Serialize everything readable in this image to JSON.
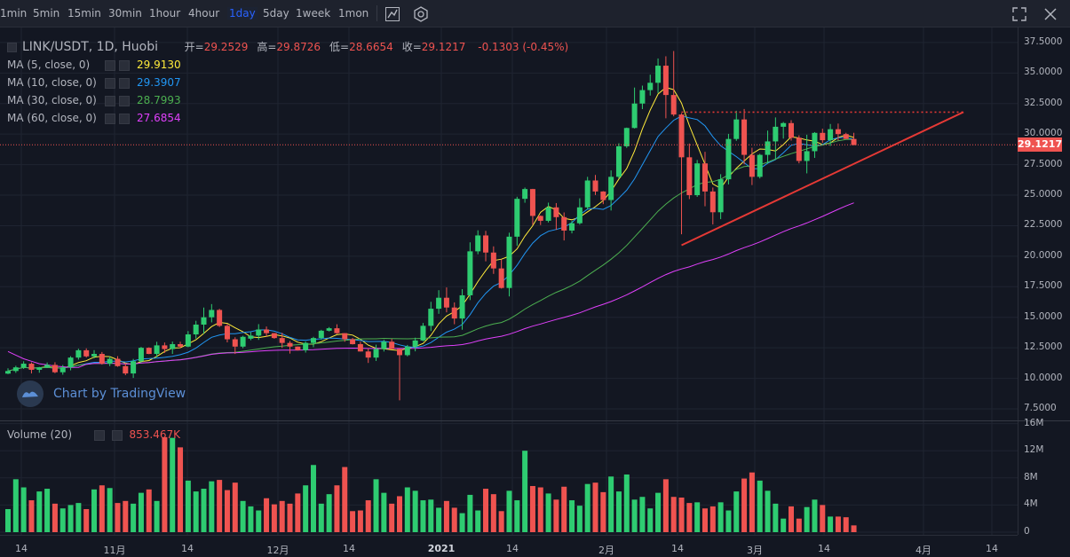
{
  "toolbar": {
    "timeframes": [
      "1min",
      "5min",
      "15min",
      "30min",
      "1hour",
      "4hour",
      "1day",
      "5day",
      "1week",
      "1mon"
    ],
    "active": "1day"
  },
  "legend": {
    "symbol": "LINK/USDT, 1D, Huobi",
    "ohlc": [
      {
        "k": "开=",
        "v": "29.2529"
      },
      {
        "k": "高=",
        "v": "29.8726"
      },
      {
        "k": "低=",
        "v": "28.6654"
      },
      {
        "k": "收=",
        "v": "29.1217"
      }
    ],
    "change": "-0.1303 (-0.45%)",
    "indicators": [
      {
        "name": "MA (5, close, 0)",
        "value": "29.9130",
        "color": "#ffeb3b"
      },
      {
        "name": "MA (10, close, 0)",
        "value": "29.3907",
        "color": "#2196f3"
      },
      {
        "name": "MA (30, close, 0)",
        "value": "28.7993",
        "color": "#4caf50"
      },
      {
        "name": "MA (60, close, 0)",
        "value": "27.6854",
        "color": "#e040fb"
      }
    ]
  },
  "volume_legend": {
    "name": "Volume (20)",
    "value": "853.467K"
  },
  "last_price": "29.1217",
  "watermark": "Chart by TradingView",
  "colors": {
    "up": "#26a69a",
    "up_bright": "#2ecc71",
    "down": "#ef5350",
    "trendline": "#e53935",
    "bg": "#131722"
  },
  "chart_data": {
    "type": "candlestick",
    "title": "LINK/USDT, 1D, Huobi",
    "price_axis": {
      "ticks": [
        "7.5000",
        "10.0000",
        "12.5000",
        "15.0000",
        "17.5000",
        "20.0000",
        "22.5000",
        "25.0000",
        "27.5000",
        "30.0000",
        "32.5000",
        "35.0000",
        "37.5000"
      ],
      "ylim": [
        7.5,
        37.5
      ]
    },
    "volume_axis": {
      "ticks": [
        "0",
        "4M",
        "8M",
        "12M",
        "16M"
      ],
      "ylim": [
        0,
        16
      ]
    },
    "time_axis": [
      "14",
      "11月",
      "14",
      "12月",
      "14",
      "2021",
      "14",
      "2月",
      "14",
      "3月",
      "14",
      "4月",
      "14"
    ],
    "price_path": [
      10.6,
      10.9,
      11.2,
      10.7,
      10.9,
      11.1,
      10.5,
      10.9,
      11.7,
      12.3,
      11.8,
      12.0,
      11.2,
      11.6,
      11.0,
      10.4,
      11.4,
      12.5,
      12.0,
      12.7,
      12.4,
      12.8,
      12.6,
      13.6,
      14.4,
      15.0,
      15.6,
      14.3,
      13.2,
      12.6,
      13.4,
      13.5,
      14.0,
      13.7,
      13.3,
      12.9,
      12.6,
      12.3,
      12.9,
      13.3,
      13.9,
      14.1,
      13.7,
      13.2,
      12.8,
      12.2,
      11.7,
      12.4,
      13.0,
      12.4,
      11.9,
      12.6,
      13.1,
      14.3,
      15.7,
      16.6,
      15.8,
      14.9,
      16.8,
      20.4,
      21.7,
      20.3,
      19.0,
      17.4,
      21.6,
      24.7,
      25.5,
      23.3,
      22.9,
      24.0,
      23.2,
      22.1,
      22.7,
      24.0,
      26.2,
      25.3,
      24.6,
      26.5,
      29.0,
      30.5,
      32.5,
      33.6,
      34.2,
      35.6,
      33.2,
      31.6,
      28.1,
      25.0,
      27.6,
      25.3,
      23.6,
      26.3,
      29.6,
      31.2,
      28.3,
      26.5,
      28.3,
      29.4,
      30.6,
      30.9,
      29.7,
      27.8,
      28.6,
      30.1,
      29.5,
      30.4,
      30.0,
      29.6,
      29.1
    ],
    "volume_path": [
      3.4,
      7.8,
      6.6,
      4.7,
      6.0,
      6.4,
      4.2,
      3.5,
      4.0,
      4.3,
      3.4,
      6.3,
      6.9,
      6.5,
      4.3,
      4.6,
      4.2,
      5.8,
      6.3,
      4.6,
      14.0,
      13.9,
      12.5,
      7.6,
      6.0,
      6.4,
      7.5,
      7.7,
      6.2,
      7.3,
      4.6,
      3.8,
      3.2,
      5.0,
      4.1,
      4.6,
      4.2,
      5.7,
      6.9,
      9.9,
      4.2,
      5.6,
      6.9,
      9.6,
      3.1,
      3.2,
      4.7,
      7.8,
      5.8,
      4.2,
      5.3,
      6.6,
      6.1,
      4.7,
      4.8,
      3.6,
      4.6,
      3.6,
      2.8,
      5.5,
      3.2,
      6.4,
      5.6,
      3.1,
      6.1,
      4.7,
      12.0,
      6.8,
      6.6,
      5.7,
      4.8,
      6.7,
      4.7,
      3.9,
      7.1,
      7.3,
      5.9,
      8.2,
      6.0,
      8.5,
      4.8,
      5.2,
      3.5,
      5.8,
      7.8,
      5.2,
      5.1,
      4.3,
      4.4,
      3.5,
      3.8,
      4.4,
      3.2,
      6.0,
      7.9,
      8.8,
      7.6,
      6.1,
      4.2,
      2.0,
      3.8,
      2.0,
      3.7,
      4.8,
      4.0,
      2.3,
      2.3,
      2.2,
      1.0
    ],
    "series": [
      {
        "name": "MA (5, close, 0)",
        "last": 29.913
      },
      {
        "name": "MA (10, close, 0)",
        "last": 29.3907
      },
      {
        "name": "MA (30, close, 0)",
        "last": 28.7993
      },
      {
        "name": "MA (60, close, 0)",
        "last": 27.6854
      }
    ],
    "annotations": {
      "resistance": {
        "from_index": 86,
        "to_index": 122,
        "price": 31.8
      },
      "trendline": {
        "from": [
          86,
          20.9
        ],
        "to": [
          122,
          31.8
        ]
      }
    }
  }
}
